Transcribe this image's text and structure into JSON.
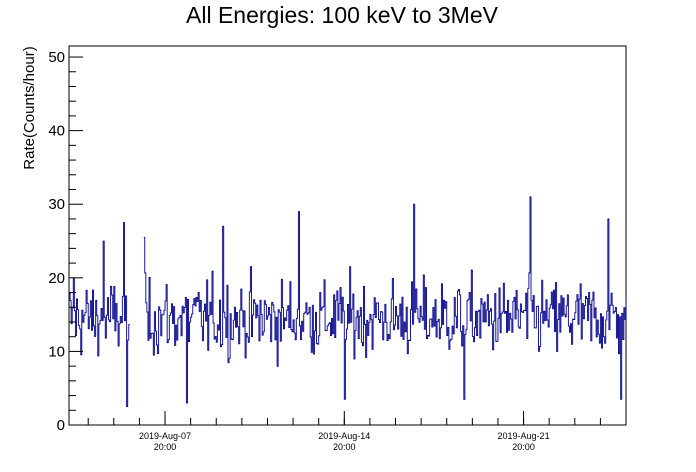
{
  "chart_data": {
    "type": "line",
    "title": "All Energies:  100 keV to 3MeV",
    "xlabel": "",
    "ylabel": "Rate(Counts/hour)",
    "ylim": [
      0,
      51.5
    ],
    "xlim": [
      "2019-Aug-04 02:00",
      "2019-Aug-25 20:00"
    ],
    "y_ticks": [
      "0",
      "10",
      "20",
      "30",
      "40",
      "50"
    ],
    "x_ticks": [
      {
        "date": "2019-Aug-07",
        "time": "20:00"
      },
      {
        "date": "2019-Aug-14",
        "time": "20:00"
      },
      {
        "date": "2019-Aug-21",
        "time": "20:00"
      }
    ],
    "color": "#00008b",
    "grid": false,
    "series": [
      {
        "x_start": "2019-Aug-04 02:00",
        "x_step_hours": 1,
        "gap": {
          "from": "2019-Aug-06 11:00",
          "to": "2019-Aug-06 23:00"
        },
        "peaks": [
          {
            "x": "2019-Aug-04 06:00",
            "y": 20
          },
          {
            "x": "2019-Aug-05 10:00",
            "y": 25
          },
          {
            "x": "2019-Aug-06 05:00",
            "y": 27.5
          },
          {
            "x": "2019-Aug-07 00:00",
            "y": 25.5
          },
          {
            "x": "2019-Aug-10 02:00",
            "y": 27
          },
          {
            "x": "2019-Aug-13 01:00",
            "y": 29
          },
          {
            "x": "2019-Aug-17 13:00",
            "y": 30
          },
          {
            "x": "2019-Aug-22 02:00",
            "y": 31
          },
          {
            "x": "2019-Aug-25 03:00",
            "y": 28
          }
        ],
        "troughs": [
          {
            "x": "2019-Aug-06 08:00",
            "y": 2.5
          },
          {
            "x": "2019-Aug-08 16:00",
            "y": 3
          },
          {
            "x": "2019-Aug-14 20:00",
            "y": 3.5
          },
          {
            "x": "2019-Aug-19 12:00",
            "y": 3.5
          },
          {
            "x": "2019-Aug-25 15:00",
            "y": 3.5
          }
        ],
        "typical_range": [
          8,
          22
        ],
        "mean": 14.5
      }
    ]
  }
}
